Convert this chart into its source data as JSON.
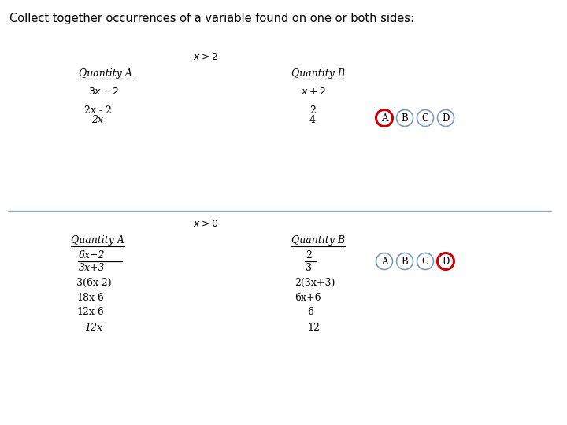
{
  "title": "Collect together occurrences of a variable found on one or both sides:",
  "background_color": "#ffffff",
  "section1": {
    "condition": "$x > 2$",
    "qty_a_label": "Quantity A",
    "qty_b_label": "Quantity B",
    "row1_a": "$3x - 2$",
    "row1_b": "$x + 2$",
    "row2_a": "2x - 2",
    "row2_b": "2",
    "row3_a": "2x",
    "row3_b": "4",
    "answer_circled": "A",
    "answer_choices": [
      "A",
      "B",
      "C",
      "D"
    ],
    "circle_color_normal": "#7a9abf",
    "circle_color_red": "#cc0000"
  },
  "section2": {
    "condition": "$x > 0$",
    "qty_a_label": "Quantity A",
    "qty_b_label": "Quantity B",
    "frac_num_a": "6x−2",
    "frac_den_a": "3x+3",
    "frac_num_b": "2",
    "frac_den_b": "3",
    "row2_a": "3(6x-2)",
    "row2_b": "2(3x+3)",
    "row3_a": "18x-6",
    "row3_b": "6x+6",
    "row4_a": "12x-6",
    "row4_b": "6",
    "row5_a": "12x",
    "row5_b": "12",
    "answer_circled": "D",
    "answer_choices": [
      "A",
      "B",
      "C",
      "D"
    ],
    "circle_color_normal": "#7a9abf",
    "circle_color_red": "#cc0000"
  },
  "divider_color": "#8ab0d0",
  "title_fontsize": 10.5,
  "label_fontsize": 9.0,
  "text_fontsize": 9.0,
  "cond_fontsize": 9.0
}
